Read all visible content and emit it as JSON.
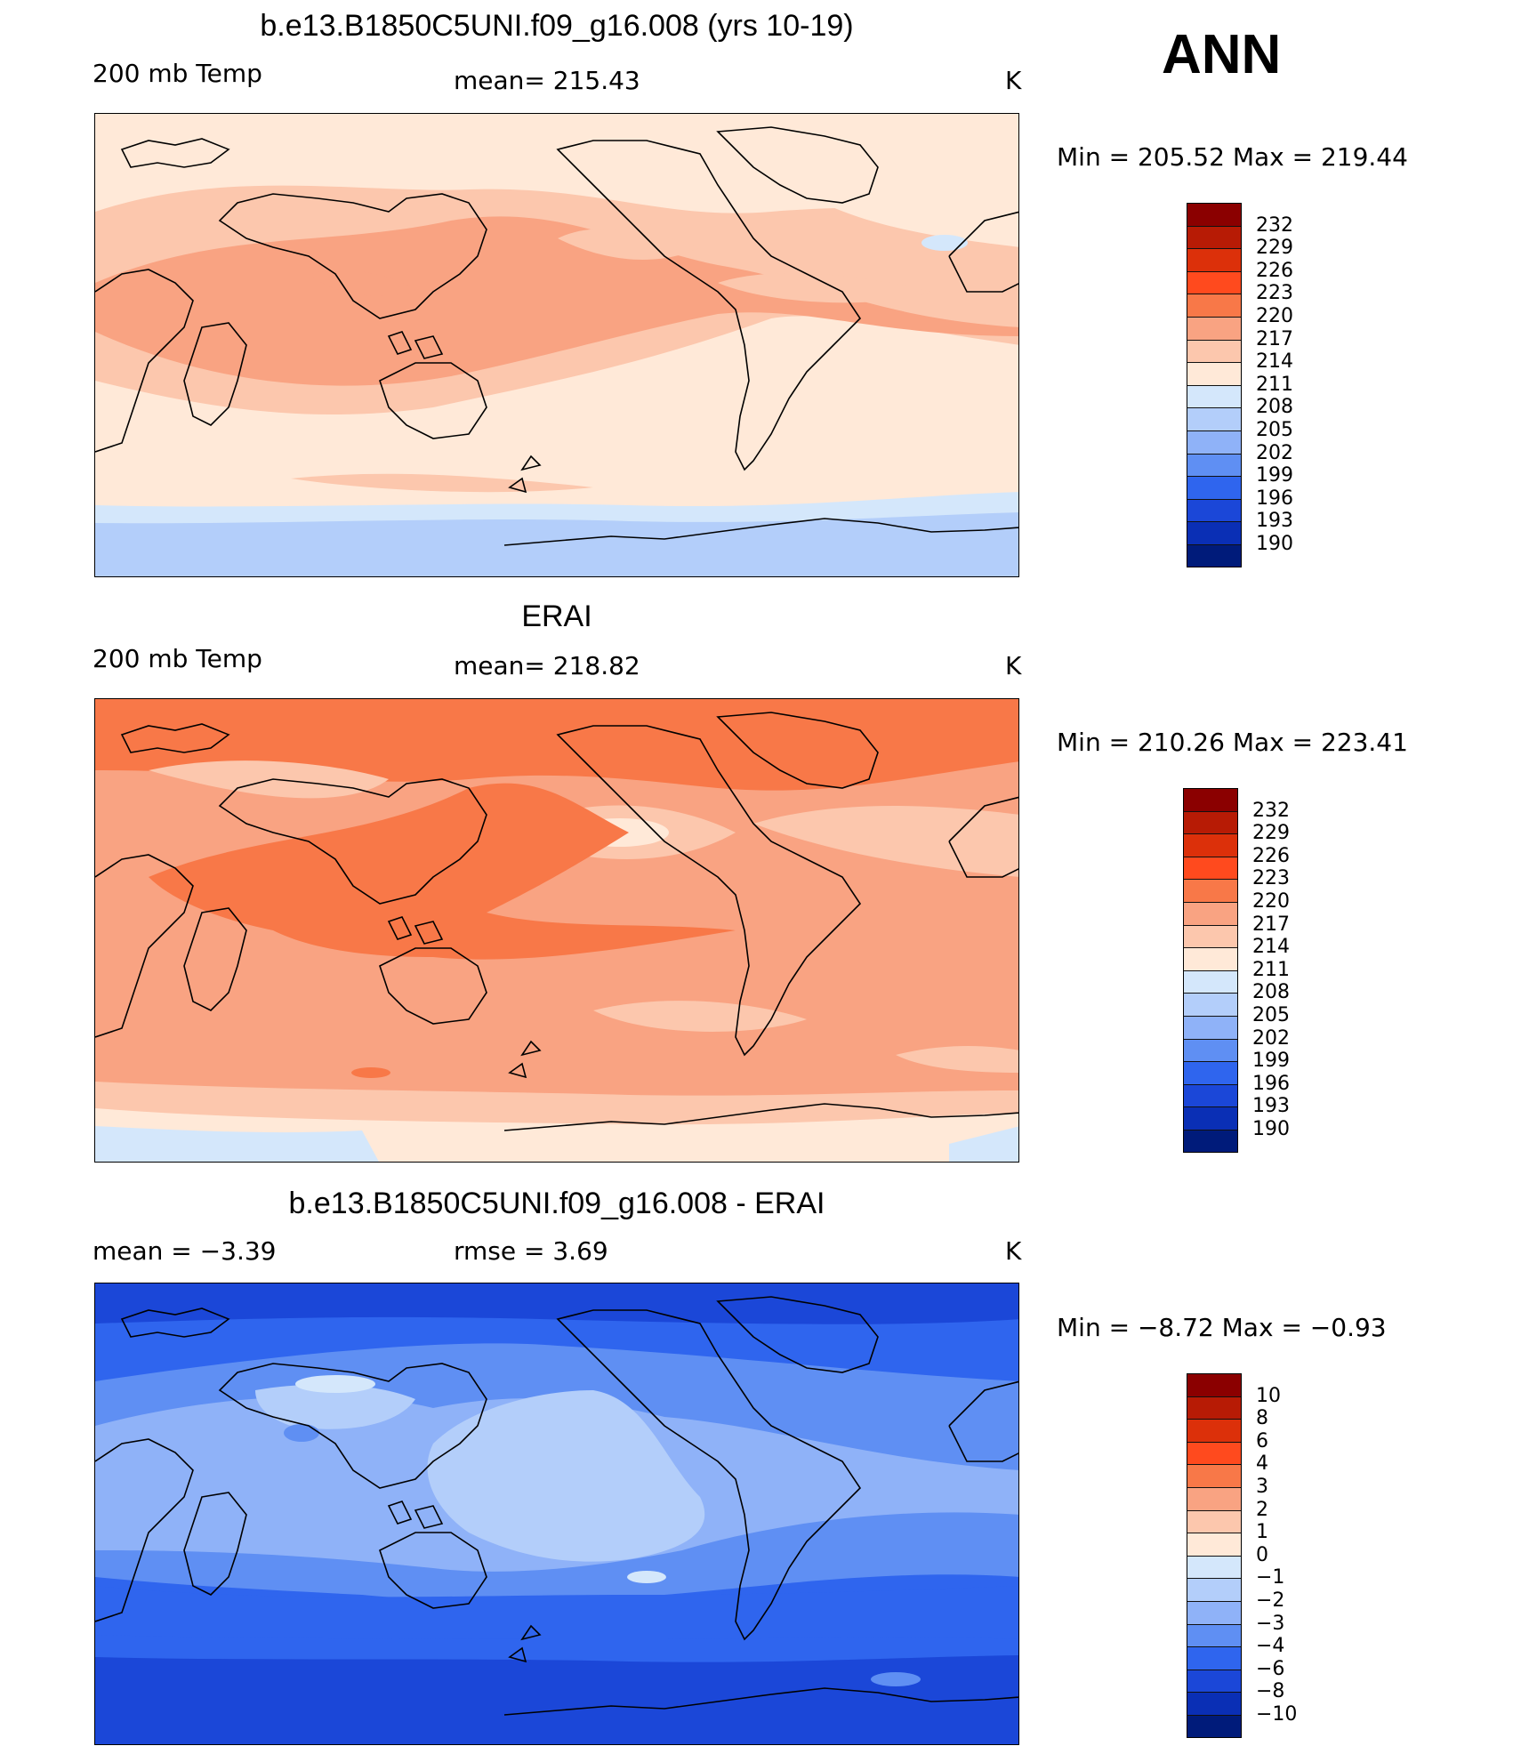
{
  "season": "ANN",
  "panels": [
    {
      "title": "b.e13.B1850C5UNI.f09_g16.008 (yrs 10-19)",
      "variable": "200 mb Temp",
      "stat": "mean=  215.43",
      "units": "K",
      "minmax": "Min  =  205.52  Max  =  219.44",
      "levels": [
        "232",
        "229",
        "226",
        "223",
        "220",
        "217",
        "214",
        "211",
        "208",
        "205",
        "202",
        "199",
        "196",
        "193",
        "190"
      ],
      "colors": [
        "#8b0000",
        "#b71b05",
        "#dc300a",
        "#ff4a1e",
        "#f87848",
        "#f9a382",
        "#fcc7ad",
        "#ffe9d8",
        "#d4e7fb",
        "#b3cefa",
        "#8fb2f8",
        "#5f8ff3",
        "#2f65ee",
        "#1b47d8",
        "#0a2fb5",
        "#001b7a"
      ]
    },
    {
      "title": "ERAI",
      "variable": "200 mb Temp",
      "stat": "mean=  218.82",
      "units": "K",
      "minmax": "Min  =  210.26  Max  =  223.41",
      "levels": [
        "232",
        "229",
        "226",
        "223",
        "220",
        "217",
        "214",
        "211",
        "208",
        "205",
        "202",
        "199",
        "196",
        "193",
        "190"
      ],
      "colors": [
        "#8b0000",
        "#b71b05",
        "#dc300a",
        "#ff4a1e",
        "#f87848",
        "#f9a382",
        "#fcc7ad",
        "#ffe9d8",
        "#d4e7fb",
        "#b3cefa",
        "#8fb2f8",
        "#5f8ff3",
        "#2f65ee",
        "#1b47d8",
        "#0a2fb5",
        "#001b7a"
      ]
    },
    {
      "title": "b.e13.B1850C5UNI.f09_g16.008 - ERAI",
      "variable": "mean  =    −3.39",
      "stat": "rmse  =     3.69",
      "units": "K",
      "minmax": "Min  =   −8.72  Max  =   −0.93",
      "levels": [
        "10",
        "8",
        "6",
        "4",
        "3",
        "2",
        "1",
        "0",
        "−1",
        "−2",
        "−3",
        "−4",
        "−6",
        "−8",
        "−10"
      ],
      "colors": [
        "#8b0000",
        "#b71b05",
        "#dc300a",
        "#ff4a1e",
        "#f87848",
        "#f9a382",
        "#fcc7ad",
        "#ffe9d8",
        "#d4e7fb",
        "#b3cefa",
        "#8fb2f8",
        "#5f8ff3",
        "#2f65ee",
        "#1b47d8",
        "#0a2fb5",
        "#001b7a"
      ]
    }
  ]
}
